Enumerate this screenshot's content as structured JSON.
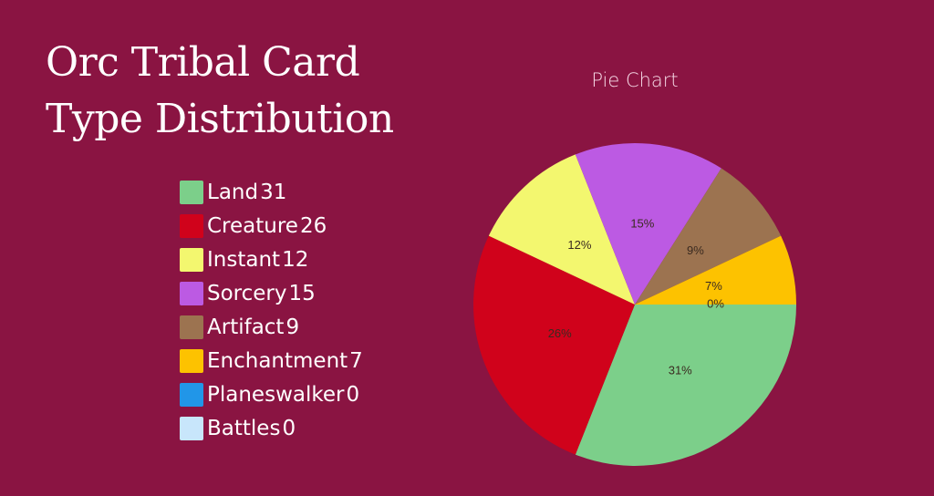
{
  "title_line1": "Orc Tribal Card",
  "title_line2": "Type Distribution",
  "legend": [
    {
      "label": "Land",
      "value": "31",
      "color": "#7ccf8a"
    },
    {
      "label": "Creature",
      "value": "26",
      "color": "#d0021b"
    },
    {
      "label": "Instant",
      "value": "12",
      "color": "#f3f76f"
    },
    {
      "label": "Sorcery",
      "value": "15",
      "color": "#bc5ae3"
    },
    {
      "label": "Artifact",
      "value": "9",
      "color": "#9c7350"
    },
    {
      "label": "Enchantment",
      "value": "7",
      "color": "#fdc200"
    },
    {
      "label": "Planeswalker",
      "value": "0",
      "color": "#2196e8"
    },
    {
      "label": "Battles",
      "value": "0",
      "color": "#c8e6fb"
    }
  ],
  "chart_data": {
    "type": "pie",
    "title": "Pie Chart",
    "categories": [
      "Land",
      "Creature",
      "Instant",
      "Sorcery",
      "Artifact",
      "Enchantment",
      "Planeswalker",
      "Battles"
    ],
    "values": [
      31,
      26,
      12,
      15,
      9,
      7,
      0,
      0
    ],
    "percent_labels": [
      "31%",
      "26%",
      "12%",
      "15%",
      "9%",
      "7%",
      "0%",
      "0%"
    ],
    "colors": [
      "#7ccf8a",
      "#d0021b",
      "#f3f76f",
      "#bc5ae3",
      "#9c7350",
      "#fdc200",
      "#2196e8",
      "#c8e6fb"
    ],
    "legend_position": "left"
  }
}
